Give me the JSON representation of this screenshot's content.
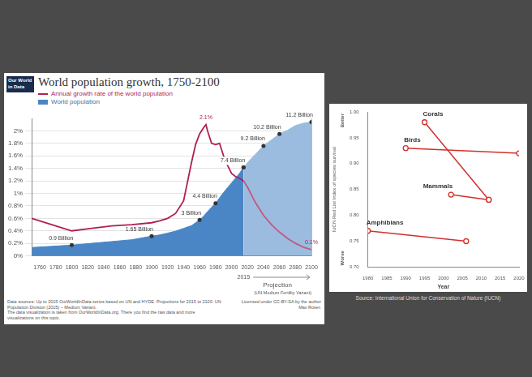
{
  "chart_data": [
    {
      "type": "line",
      "logo": "Our World in Data",
      "title": "World population growth, 1750-2100",
      "legend": "top left",
      "x": [
        1750,
        1775,
        1800,
        1825,
        1850,
        1875,
        1900,
        1910,
        1920,
        1930,
        1940,
        1950,
        1955,
        1960,
        1965,
        1968,
        1970,
        1975,
        1980,
        1985,
        1990,
        1995,
        2000,
        2005,
        2010,
        2015,
        2020,
        2030,
        2040,
        2050,
        2060,
        2070,
        2080,
        2090,
        2100
      ],
      "xlim": [
        1750,
        2100
      ],
      "xticks": [
        1760,
        1780,
        1800,
        1820,
        1840,
        1860,
        1880,
        1900,
        1920,
        1940,
        1960,
        1980,
        2000,
        2020,
        2040,
        2060,
        2080,
        2100
      ],
      "ylim": [
        0,
        2.2
      ],
      "yticks": [
        {
          "value": 0,
          "label": "0%"
        },
        {
          "value": 0.2,
          "label": "0.2%"
        },
        {
          "value": 0.4,
          "label": "0.4%"
        },
        {
          "value": 0.6,
          "label": "0.6%"
        },
        {
          "value": 0.8,
          "label": "0.8%"
        },
        {
          "value": 1,
          "label": "1%"
        },
        {
          "value": 1.2,
          "label": "1.2%"
        },
        {
          "value": 1.4,
          "label": "1.4%"
        },
        {
          "value": 1.6,
          "label": "1.6%"
        },
        {
          "value": 1.8,
          "label": "1.8%"
        },
        {
          "value": 2,
          "label": "2%"
        }
      ],
      "y2lim": [
        0,
        11.5
      ],
      "grid": true,
      "data_labels": true,
      "series": [
        {
          "name": "Annual growth rate of the world population",
          "type": "line",
          "color": "#b01f55",
          "values": [
            0.6,
            0.5,
            0.4,
            0.44,
            0.48,
            0.5,
            0.53,
            0.56,
            0.6,
            0.68,
            0.88,
            1.5,
            1.78,
            1.95,
            2.05,
            2.1,
            2.0,
            1.8,
            1.78,
            1.8,
            1.6,
            1.45,
            1.32,
            1.27,
            1.24,
            1.2,
            1.1,
            0.85,
            0.65,
            0.5,
            0.38,
            0.28,
            0.2,
            0.14,
            0.1
          ],
          "value_labels": [
            null,
            null,
            null,
            null,
            null,
            null,
            null,
            null,
            null,
            null,
            null,
            null,
            null,
            null,
            null,
            "2.1%",
            null,
            null,
            null,
            null,
            null,
            null,
            null,
            null,
            null,
            null,
            null,
            null,
            null,
            null,
            null,
            null,
            null,
            null,
            "0.1%"
          ]
        },
        {
          "name": "World population",
          "type": "area",
          "axis": "y2",
          "color": "#4a86c5",
          "marker": "circle",
          "values": [
            0.7,
            0.8,
            0.9,
            1.05,
            1.2,
            1.35,
            1.65,
            1.75,
            1.9,
            2.07,
            2.3,
            2.53,
            2.77,
            3,
            3.32,
            3.55,
            3.7,
            4.07,
            4.4,
            4.85,
            5.3,
            5.7,
            6.1,
            6.5,
            6.9,
            7.4,
            7.8,
            8.5,
            9.2,
            9.7,
            10.2,
            10.5,
            10.9,
            11.1,
            11.2
          ],
          "value_labels": [
            null,
            null,
            "0.9 Billion",
            null,
            null,
            null,
            "1.65 Billion",
            null,
            null,
            null,
            null,
            null,
            null,
            "3 Billion",
            null,
            null,
            null,
            null,
            "4.4 Billion",
            null,
            null,
            null,
            null,
            null,
            null,
            "7.4 Billion",
            null,
            null,
            "9.2 Billion",
            null,
            "10.2 Billion",
            null,
            null,
            null,
            "11.2 Billion"
          ]
        }
      ],
      "projection": {
        "start": 2015,
        "text": "Projection",
        "note": "(UN Medium Fertility Variant)"
      },
      "source": [
        "Data sources: Up to 2015 OurWorldInData series based on UN and HYDE. Projections for 2015 to 2100: UN Population Division (2015) – Medium Variant.",
        "The data visualization is taken from OurWorldInData.org. There you find the raw data and more visualizations on this topic."
      ],
      "license": "Licensed under CC-BY-SA by the author Max Roser."
    },
    {
      "type": "line",
      "y_title": "IUCN Red List Index of species survival",
      "y_top_label": "Better",
      "y_bottom_label": "Worse",
      "x_title": "Year",
      "xlim": [
        1980,
        2020
      ],
      "xticks": [
        1980,
        1985,
        1990,
        1995,
        2000,
        2005,
        2010,
        2015,
        2020
      ],
      "ylim": [
        0.7,
        1.0
      ],
      "yticks": [
        {
          "value": 0.7,
          "label": "0.70"
        },
        {
          "value": 0.75,
          "label": "0.75"
        },
        {
          "value": 0.8,
          "label": "0.80"
        },
        {
          "value": 0.85,
          "label": "0.85"
        },
        {
          "value": 0.9,
          "label": "0.90"
        },
        {
          "value": 0.95,
          "label": "0.95"
        },
        {
          "value": 1.0,
          "label": "1.00"
        }
      ],
      "grid": false,
      "marker": "circle",
      "series": [
        {
          "name": "Corals",
          "color": "#d0312d",
          "x": [
            1995,
            2012
          ],
          "values": [
            0.98,
            0.83
          ]
        },
        {
          "name": "Birds",
          "color": "#d0312d",
          "x": [
            1990,
            2020
          ],
          "values": [
            0.93,
            0.92
          ]
        },
        {
          "name": "Mammals",
          "color": "#d0312d",
          "x": [
            2002,
            2012
          ],
          "values": [
            0.84,
            0.83
          ]
        },
        {
          "name": "Amphibians",
          "color": "#d0312d",
          "x": [
            1980,
            2006
          ],
          "values": [
            0.77,
            0.75
          ]
        }
      ],
      "source": "Source: International Union for Conservation of Nature (IUCN)"
    }
  ]
}
